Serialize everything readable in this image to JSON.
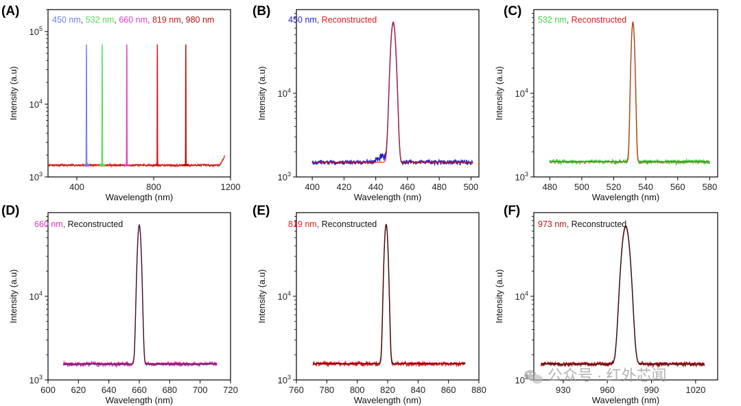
{
  "chart_data": [
    {
      "id": "A",
      "panel_label": "(A)",
      "type": "line",
      "log_y": true,
      "xlim": [
        250,
        1200
      ],
      "ylim": [
        1000,
        200000
      ],
      "xlabel": "Wavelength (nm)",
      "ylabel": "Intensity (a.u)",
      "xticks": [
        400,
        800,
        1200
      ],
      "yticks": [
        {
          "value": 1000,
          "base": "10",
          "exp": "3"
        },
        {
          "value": 10000,
          "base": "10",
          "exp": "4"
        },
        {
          "value": 100000,
          "base": "10",
          "exp": "5"
        }
      ],
      "baseline": 1450,
      "background": {
        "x_start": 250,
        "x_end": 1170,
        "color": "#d42020",
        "end_rise": 1950
      },
      "series": [
        {
          "name": "450 nm",
          "color": "#6f7fe8",
          "center": 450,
          "peak": 65000,
          "width": 1.6
        },
        {
          "name": "532 nm",
          "color": "#4fe24f",
          "center": 532,
          "peak": 65000,
          "width": 1.6
        },
        {
          "name": "660 nm",
          "color": "#e040c0",
          "center": 660,
          "peak": 65000,
          "width": 1.6
        },
        {
          "name": "819 nm",
          "color": "#d01818",
          "center": 819,
          "peak": 65000,
          "width": 1.6
        },
        {
          "name": "980 nm",
          "color": "#b01010",
          "center": 967,
          "peak": 65000,
          "width": 1.6
        }
      ],
      "legend": [
        {
          "text": "450 nm",
          "color": "#6f7fe8"
        },
        {
          "text": ", ",
          "color": "#444444"
        },
        {
          "text": "532 nm",
          "color": "#4fe24f"
        },
        {
          "text": ", ",
          "color": "#444444"
        },
        {
          "text": "660 nm",
          "color": "#e040c0"
        },
        {
          "text": ", ",
          "color": "#444444"
        },
        {
          "text": "819 nm",
          "color": "#d01818"
        },
        {
          "text": ", ",
          "color": "#444444"
        },
        {
          "text": "980 nm",
          "color": "#b01010"
        }
      ]
    },
    {
      "id": "B",
      "panel_label": "(B)",
      "type": "line",
      "log_y": true,
      "xlim": [
        390,
        505
      ],
      "ylim": [
        1000,
        100000
      ],
      "xlabel": "Wavelength (nm)",
      "ylabel": "Intensity (a.u)",
      "xticks": [
        400,
        420,
        440,
        460,
        480,
        500
      ],
      "yticks": [
        {
          "value": 1000,
          "base": "10",
          "exp": "3"
        },
        {
          "value": 10000,
          "base": "10",
          "exp": "4"
        }
      ],
      "baseline": 1500,
      "measured": {
        "name": "450 nm",
        "color": "#2323c8",
        "x_start": 400,
        "x_end": 501,
        "center": 451,
        "peak": 68000,
        "width": 1.35
      },
      "reconstructed": {
        "name": "Reconstructed",
        "color": "#e01818",
        "center": 451,
        "peak": 70000,
        "width": 1.35
      },
      "legend": [
        {
          "text": "450 nm",
          "color": "#2323c8"
        },
        {
          "text": ", ",
          "color": "#444444"
        },
        {
          "text": "Reconstructed",
          "color": "#e01818"
        }
      ]
    },
    {
      "id": "C",
      "panel_label": "(C)",
      "type": "line",
      "log_y": true,
      "xlim": [
        470,
        585
      ],
      "ylim": [
        1000,
        100000
      ],
      "xlabel": "Wavelength (nm)",
      "ylabel": "Intensity (a.u)",
      "xticks": [
        480,
        500,
        520,
        540,
        560,
        580
      ],
      "yticks": [
        {
          "value": 1000,
          "base": "10",
          "exp": "3"
        },
        {
          "value": 10000,
          "base": "10",
          "exp": "4"
        }
      ],
      "baseline": 1520,
      "measured": {
        "name": "532 nm",
        "color": "#3fd43f",
        "x_start": 480,
        "x_end": 580,
        "center": 532,
        "peak": 68000,
        "width": 0.9
      },
      "reconstructed": {
        "name": "Reconstructed",
        "color": "#e01818",
        "center": 532,
        "peak": 70000,
        "width": 0.85
      },
      "legend": [
        {
          "text": "532 nm",
          "color": "#3fd43f"
        },
        {
          "text": ", ",
          "color": "#444444"
        },
        {
          "text": "Reconstructed",
          "color": "#e01818"
        }
      ]
    },
    {
      "id": "D",
      "panel_label": "(D)",
      "type": "line",
      "log_y": true,
      "xlim": [
        600,
        720
      ],
      "ylim": [
        1000,
        100000
      ],
      "xlabel": "Wavelength (nm)",
      "ylabel": "Intensity (a.u)",
      "xticks": [
        600,
        620,
        640,
        660,
        680,
        700,
        720
      ],
      "yticks": [
        {
          "value": 1000,
          "base": "10",
          "exp": "3"
        },
        {
          "value": 10000,
          "base": "10",
          "exp": "4"
        }
      ],
      "baseline": 1550,
      "measured": {
        "name": "660 nm",
        "color": "#e236b8",
        "x_start": 610,
        "x_end": 711,
        "center": 660,
        "peak": 68000,
        "width": 1.05
      },
      "reconstructed": {
        "name": "Reconstructed",
        "color": "#111111",
        "center": 660,
        "peak": 70000,
        "width": 1.05
      },
      "legend": [
        {
          "text": "660 nm",
          "color": "#e236b8"
        },
        {
          "text": ", ",
          "color": "#444444"
        },
        {
          "text": "Reconstructed",
          "color": "#111111"
        }
      ]
    },
    {
      "id": "E",
      "panel_label": "(E)",
      "type": "line",
      "log_y": true,
      "xlim": [
        760,
        880
      ],
      "ylim": [
        1000,
        100000
      ],
      "xlabel": "Wavelength (nm)",
      "ylabel": "Intensity (a.u)",
      "xticks": [
        760,
        780,
        800,
        820,
        840,
        860,
        880
      ],
      "yticks": [
        {
          "value": 1000,
          "base": "10",
          "exp": "3"
        },
        {
          "value": 10000,
          "base": "10",
          "exp": "4"
        }
      ],
      "baseline": 1560,
      "measured": {
        "name": "819 nm",
        "color": "#e02020",
        "x_start": 771,
        "x_end": 871,
        "center": 819,
        "peak": 70000,
        "width": 1.05
      },
      "reconstructed": {
        "name": "Reconstructed",
        "color": "#111111",
        "center": 819,
        "peak": 71000,
        "width": 1.0
      },
      "legend": [
        {
          "text": "819 nm",
          "color": "#e02020"
        },
        {
          "text": ", ",
          "color": "#444444"
        },
        {
          "text": "Reconstructed",
          "color": "#111111"
        }
      ]
    },
    {
      "id": "F",
      "panel_label": "(F)",
      "type": "line",
      "log_y": true,
      "xlim": [
        910,
        1035
      ],
      "ylim": [
        1000,
        100000
      ],
      "xlabel": "Wavelength (nm)",
      "ylabel": "Intensity (a.u)",
      "xticks": [
        930,
        960,
        990,
        1020
      ],
      "yticks": [
        {
          "value": 1000,
          "base": "10",
          "exp": "3"
        },
        {
          "value": 10000,
          "base": "10",
          "exp": "4"
        }
      ],
      "baseline": 1550,
      "measured": {
        "name": "973 nm",
        "color": "#b01818",
        "x_start": 915,
        "x_end": 1026,
        "center": 972.5,
        "peak": 66000,
        "width": 2.3
      },
      "reconstructed": {
        "name": "Reconstructed",
        "color": "#111111",
        "center": 972.5,
        "peak": 68000,
        "width": 2.3
      },
      "legend": [
        {
          "text": "973 nm",
          "color": "#b01818"
        },
        {
          "text": ", ",
          "color": "#444444"
        },
        {
          "text": "Reconstructed",
          "color": "#111111"
        }
      ]
    }
  ],
  "watermark": {
    "text": "公众号 · 红外芯闻",
    "icon": "wechat-icon"
  }
}
